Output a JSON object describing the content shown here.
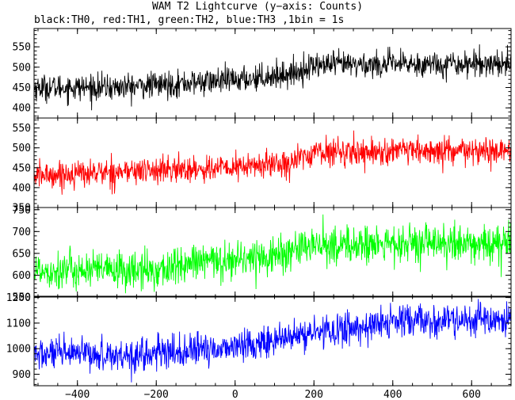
{
  "title": "WAM T2 Lightcurve (y−axis: Counts)",
  "subtitle": "black:TH0, red:TH1, green:TH2, blue:TH3 ,1bin = 1s",
  "chart_data": {
    "type": "line",
    "title": "WAM T2 Lightcurve (y−axis: Counts)",
    "subtitle": "black:TH0, red:TH1, green:TH2, blue:TH3 ,1bin = 1s",
    "xlim": [
      -510,
      700
    ],
    "x_ticks": [
      -400,
      -200,
      0,
      200,
      400,
      600
    ],
    "x_tick_labels": [
      "−400",
      "−200",
      "0",
      "200",
      "400",
      "600"
    ],
    "x_step": 1,
    "grid": false,
    "panels": [
      {
        "name": "TH0",
        "color": "#000000",
        "ylim": [
          375,
          595
        ],
        "y_ticks": [
          400,
          450,
          500,
          550
        ],
        "trend": [
          [
            -510,
            450
          ],
          [
            -300,
            450
          ],
          [
            -100,
            462
          ],
          [
            0,
            468
          ],
          [
            150,
            485
          ],
          [
            200,
            505
          ],
          [
            700,
            510
          ]
        ],
        "noise_sd": 16
      },
      {
        "name": "TH1",
        "color": "#ff0000",
        "ylim": [
          350,
          575
        ],
        "y_ticks": [
          350,
          400,
          450,
          500,
          550
        ],
        "trend": [
          [
            -510,
            430
          ],
          [
            -300,
            440
          ],
          [
            0,
            450
          ],
          [
            150,
            465
          ],
          [
            200,
            490
          ],
          [
            700,
            490
          ]
        ],
        "noise_sd": 17
      },
      {
        "name": "TH2",
        "color": "#00ff00",
        "ylim": [
          550,
          755
        ],
        "y_ticks": [
          550,
          600,
          650,
          700,
          750
        ],
        "trend": [
          [
            -510,
            612
          ],
          [
            -200,
            610
          ],
          [
            -100,
            628
          ],
          [
            100,
            645
          ],
          [
            200,
            668
          ],
          [
            700,
            672
          ]
        ],
        "noise_sd": 22
      },
      {
        "name": "TH3",
        "color": "#0000ff",
        "ylim": [
          855,
          1205
        ],
        "y_ticks": [
          900,
          1000,
          1100,
          1200
        ],
        "trend": [
          [
            -510,
            978
          ],
          [
            -250,
            975
          ],
          [
            -100,
            990
          ],
          [
            100,
            1030
          ],
          [
            200,
            1062
          ],
          [
            300,
            1080
          ],
          [
            400,
            1105
          ],
          [
            700,
            1110
          ]
        ],
        "noise_sd": 32
      }
    ]
  }
}
